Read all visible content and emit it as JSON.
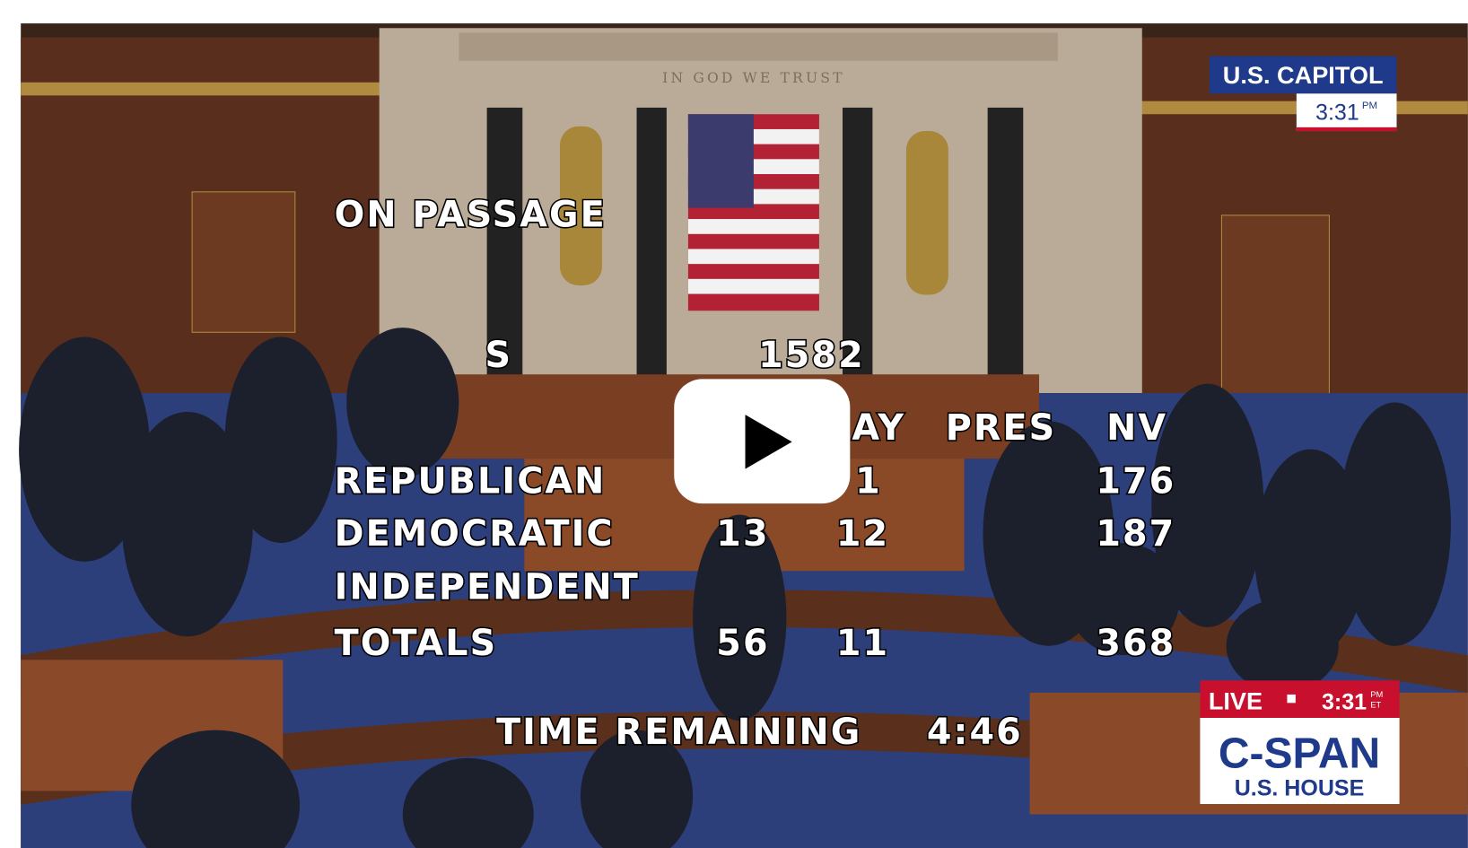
{
  "inscription": "IN GOD WE TRUST",
  "bug": {
    "location": "U.S. CAPITOL",
    "time": "3:31",
    "meridiem": "PM"
  },
  "tally": {
    "heading": "ON PASSAGE",
    "bill_number": "1582",
    "columns": [
      "S",
      "AY",
      "PRES",
      "NV"
    ],
    "rows": [
      {
        "label": "REPUBLICAN",
        "cells": [
          "1",
          "176"
        ]
      },
      {
        "label": "DEMOCRATIC",
        "cells": [
          "13",
          "12",
          "187"
        ]
      },
      {
        "label": "INDEPENDENT"
      },
      {
        "label": "TOTALS",
        "cells": [
          "56",
          "11",
          "368"
        ]
      }
    ]
  },
  "time_remaining": {
    "label": "TIME REMAINING",
    "value": "4:46"
  },
  "live_bug": {
    "live": "LIVE",
    "time": "3:31",
    "meridiem": "PM",
    "zone": "ET",
    "network": "C-SPAN",
    "channel": "U.S. HOUSE"
  }
}
